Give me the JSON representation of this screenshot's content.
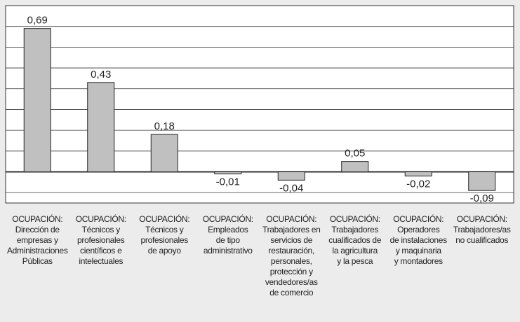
{
  "chart_data": {
    "type": "bar",
    "categories": [
      "OCUPACIÓN:\nDirección de\nempresas y\nAdministraciones\nPúblicas",
      "OCUPACIÓN:\nTécnicos y\nprofesionales\ncientíficos e\nintelectuales",
      "OCUPACIÓN:\nTécnicos y\nprofesionales\nde apoyo",
      "OCUPACIÓN:\nEmpleados\nde tipo\nadministrativo",
      "OCUPACIÓN:\nTrabajadores en\nservicios de\nrestauración,\npersonales,\nprotección y\nvendedores/as\nde comercio",
      "OCUPACIÓN:\nTrabajadores\ncualificados de\nla agricultura\ny la pesca",
      "OCUPACIÓN:\nOperadores\nde instalaciones\ny maquinaria\ny montadores",
      "OCUPACIÓN:\nTrabajadores/as\nno cualificados"
    ],
    "values": [
      0.69,
      0.43,
      0.18,
      -0.01,
      -0.04,
      0.05,
      -0.02,
      -0.09
    ],
    "value_labels": [
      "0,69",
      "0,43",
      "0,18",
      "-0,01",
      "-0,04",
      "0,05",
      "-0,02",
      "-0,09"
    ],
    "color": "#c0c0c0",
    "ylim": [
      -0.15,
      0.8
    ],
    "yticks": [
      -0.1,
      0,
      0.1,
      0.2,
      0.3,
      0.4,
      0.5,
      0.6,
      0.7,
      0.8
    ],
    "grid": true
  }
}
